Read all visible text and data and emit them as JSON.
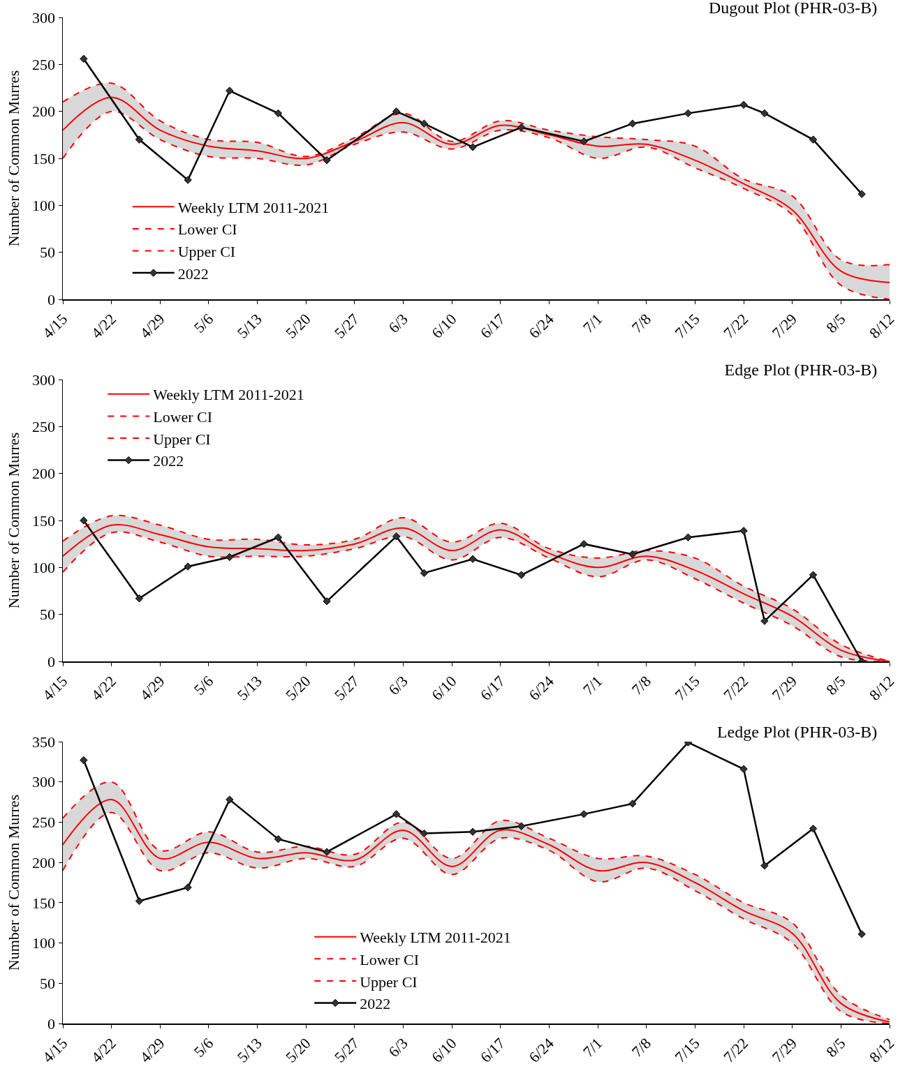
{
  "chart_data": [
    {
      "type": "line",
      "title": "Dugout Plot (PHR-03-B)",
      "ylabel": "Number of Common Murres",
      "legend": "left",
      "grid": false,
      "x": [
        "--04-15",
        "--04-22",
        "--04-29",
        "--05-06",
        "--05-13",
        "--05-20",
        "--05-27",
        "--06-03",
        "--06-10",
        "--06-17",
        "--06-24",
        "--07-01",
        "--07-08",
        "--07-15",
        "--07-22",
        "--07-29",
        "--08-05",
        "--08-12"
      ],
      "xlim": [
        "--04-15",
        "--08-12"
      ],
      "xticks": [
        {
          "value": "--04-15",
          "label": "4/15"
        },
        {
          "value": "--04-22",
          "label": "4/22"
        },
        {
          "value": "--04-29",
          "label": "4/29"
        },
        {
          "value": "--05-06",
          "label": "5/6"
        },
        {
          "value": "--05-13",
          "label": "5/13"
        },
        {
          "value": "--05-20",
          "label": "5/20"
        },
        {
          "value": "--05-27",
          "label": "5/27"
        },
        {
          "value": "--06-03",
          "label": "6/3"
        },
        {
          "value": "--06-10",
          "label": "6/10"
        },
        {
          "value": "--06-17",
          "label": "6/17"
        },
        {
          "value": "--06-24",
          "label": "6/24"
        },
        {
          "value": "--07-01",
          "label": "7/1"
        },
        {
          "value": "--07-08",
          "label": "7/8"
        },
        {
          "value": "--07-15",
          "label": "7/15"
        },
        {
          "value": "--07-22",
          "label": "7/22"
        },
        {
          "value": "--07-29",
          "label": "7/29"
        },
        {
          "value": "--08-05",
          "label": "8/5"
        },
        {
          "value": "--08-12",
          "label": "8/12"
        }
      ],
      "ylim": [
        0,
        300
      ],
      "yticks": [
        0,
        50,
        100,
        150,
        200,
        250,
        300
      ],
      "series": [
        {
          "name": "Weekly LTM 2011-2021",
          "color": "#ff0000",
          "line_style": "solid",
          "marker": "none",
          "values": [
            180,
            215,
            180,
            163,
            158,
            150,
            168,
            188,
            165,
            185,
            175,
            163,
            165,
            148,
            123,
            95,
            30,
            18
          ],
          "lower": [
            150,
            200,
            170,
            152,
            150,
            143,
            165,
            178,
            160,
            180,
            172,
            150,
            162,
            140,
            118,
            90,
            15,
            0
          ],
          "upper": [
            210,
            230,
            190,
            170,
            167,
            152,
            172,
            198,
            168,
            190,
            180,
            173,
            170,
            163,
            128,
            110,
            42,
            37
          ]
        },
        {
          "name": "Lower CI",
          "color": "#ff0000",
          "line_style": "dashed",
          "marker": "none",
          "values": [
            150,
            200,
            170,
            152,
            150,
            143,
            165,
            178,
            160,
            180,
            172,
            150,
            162,
            140,
            118,
            90,
            15,
            0
          ]
        },
        {
          "name": "Upper CI",
          "color": "#ff0000",
          "line_style": "dashed",
          "marker": "none",
          "values": [
            210,
            230,
            190,
            170,
            167,
            152,
            172,
            198,
            168,
            190,
            180,
            173,
            170,
            163,
            128,
            110,
            42,
            37
          ]
        },
        {
          "name": "2022",
          "color": "#000000",
          "line_style": "solid",
          "marker": "diamond",
          "x": [
            "--04-18",
            "--04-26",
            "--05-03",
            "--05-09",
            "--05-16",
            "--05-23",
            "--06-02",
            "--06-06",
            "--06-13",
            "--06-20",
            "--06-29",
            "--07-06",
            "--07-14",
            "--07-22",
            "--07-25",
            "--08-01",
            "--08-08"
          ],
          "values": [
            256,
            170,
            127,
            222,
            198,
            148,
            200,
            187,
            162,
            183,
            168,
            187,
            198,
            207,
            198,
            170,
            112
          ]
        }
      ]
    },
    {
      "type": "line",
      "title": "Edge Plot (PHR-03-B)",
      "ylabel": "Number of Common Murres",
      "legend": "top left",
      "grid": false,
      "x": [
        "--04-15",
        "--04-22",
        "--04-29",
        "--05-06",
        "--05-13",
        "--05-20",
        "--05-27",
        "--06-03",
        "--06-10",
        "--06-17",
        "--06-24",
        "--07-01",
        "--07-08",
        "--07-15",
        "--07-22",
        "--07-29",
        "--08-05",
        "--08-12"
      ],
      "xlim": [
        "--04-15",
        "--08-12"
      ],
      "xticks": [
        {
          "value": "--04-15",
          "label": "4/15"
        },
        {
          "value": "--04-22",
          "label": "4/22"
        },
        {
          "value": "--04-29",
          "label": "4/29"
        },
        {
          "value": "--05-06",
          "label": "5/6"
        },
        {
          "value": "--05-13",
          "label": "5/13"
        },
        {
          "value": "--05-20",
          "label": "5/20"
        },
        {
          "value": "--05-27",
          "label": "5/27"
        },
        {
          "value": "--06-03",
          "label": "6/3"
        },
        {
          "value": "--06-10",
          "label": "6/10"
        },
        {
          "value": "--06-17",
          "label": "6/17"
        },
        {
          "value": "--06-24",
          "label": "6/24"
        },
        {
          "value": "--07-01",
          "label": "7/1"
        },
        {
          "value": "--07-08",
          "label": "7/8"
        },
        {
          "value": "--07-15",
          "label": "7/15"
        },
        {
          "value": "--07-22",
          "label": "7/22"
        },
        {
          "value": "--07-29",
          "label": "7/29"
        },
        {
          "value": "--08-05",
          "label": "8/5"
        },
        {
          "value": "--08-12",
          "label": "8/12"
        }
      ],
      "ylim": [
        0,
        300
      ],
      "yticks": [
        0,
        50,
        100,
        150,
        200,
        250,
        300
      ],
      "series": [
        {
          "name": "Weekly LTM 2011-2021",
          "color": "#ff0000",
          "line_style": "solid",
          "marker": "none",
          "values": [
            112,
            145,
            135,
            122,
            120,
            118,
            125,
            142,
            118,
            140,
            115,
            100,
            112,
            97,
            72,
            48,
            12,
            0
          ],
          "lower": [
            95,
            137,
            127,
            112,
            112,
            112,
            120,
            133,
            108,
            132,
            110,
            90,
            108,
            88,
            62,
            38,
            5,
            0
          ],
          "upper": [
            128,
            155,
            145,
            130,
            130,
            124,
            130,
            153,
            127,
            147,
            120,
            110,
            118,
            110,
            80,
            56,
            18,
            0
          ]
        },
        {
          "name": "Lower CI",
          "color": "#ff0000",
          "line_style": "dashed",
          "marker": "none",
          "values": [
            95,
            137,
            127,
            112,
            112,
            112,
            120,
            133,
            108,
            132,
            110,
            90,
            108,
            88,
            62,
            38,
            5,
            0
          ]
        },
        {
          "name": "Upper CI",
          "color": "#ff0000",
          "line_style": "dashed",
          "marker": "none",
          "values": [
            128,
            155,
            145,
            130,
            130,
            124,
            130,
            153,
            127,
            147,
            120,
            110,
            118,
            110,
            80,
            56,
            18,
            0
          ]
        },
        {
          "name": "2022",
          "color": "#000000",
          "line_style": "solid",
          "marker": "diamond",
          "x": [
            "--04-18",
            "--04-26",
            "--05-03",
            "--05-09",
            "--05-16",
            "--05-23",
            "--06-02",
            "--06-06",
            "--06-13",
            "--06-20",
            "--06-29",
            "--07-06",
            "--07-14",
            "--07-22",
            "--07-25",
            "--08-01",
            "--08-08"
          ],
          "values": [
            150,
            67,
            101,
            111,
            132,
            64,
            133,
            94,
            109,
            92,
            125,
            114,
            132,
            139,
            43,
            92,
            0
          ]
        }
      ]
    },
    {
      "type": "line",
      "title": "Ledge Plot (PHR-03-B)",
      "ylabel": "Number of Common Murres",
      "legend": "bottom",
      "grid": false,
      "x": [
        "--04-15",
        "--04-22",
        "--04-29",
        "--05-06",
        "--05-13",
        "--05-20",
        "--05-27",
        "--06-03",
        "--06-10",
        "--06-17",
        "--06-24",
        "--07-01",
        "--07-08",
        "--07-15",
        "--07-22",
        "--07-29",
        "--08-05",
        "--08-12"
      ],
      "xlim": [
        "--04-15",
        "--08-12"
      ],
      "xticks": [
        {
          "value": "--04-15",
          "label": "4/15"
        },
        {
          "value": "--04-22",
          "label": "4/22"
        },
        {
          "value": "--04-29",
          "label": "4/29"
        },
        {
          "value": "--05-06",
          "label": "5/6"
        },
        {
          "value": "--05-13",
          "label": "5/13"
        },
        {
          "value": "--05-20",
          "label": "5/20"
        },
        {
          "value": "--05-27",
          "label": "5/27"
        },
        {
          "value": "--06-03",
          "label": "6/3"
        },
        {
          "value": "--06-10",
          "label": "6/10"
        },
        {
          "value": "--06-17",
          "label": "6/17"
        },
        {
          "value": "--06-24",
          "label": "6/24"
        },
        {
          "value": "--07-01",
          "label": "7/1"
        },
        {
          "value": "--07-08",
          "label": "7/8"
        },
        {
          "value": "--07-15",
          "label": "7/15"
        },
        {
          "value": "--07-22",
          "label": "7/22"
        },
        {
          "value": "--07-29",
          "label": "7/29"
        },
        {
          "value": "--08-05",
          "label": "8/5"
        },
        {
          "value": "--08-12",
          "label": "8/12"
        }
      ],
      "ylim": [
        0,
        350
      ],
      "yticks": [
        0,
        50,
        100,
        150,
        200,
        250,
        300,
        350
      ],
      "series": [
        {
          "name": "Weekly LTM 2011-2021",
          "color": "#ff0000",
          "line_style": "solid",
          "marker": "none",
          "values": [
            222,
            278,
            205,
            225,
            205,
            212,
            203,
            240,
            195,
            240,
            222,
            190,
            200,
            175,
            140,
            112,
            25,
            2
          ],
          "lower": [
            190,
            262,
            190,
            212,
            193,
            205,
            195,
            230,
            185,
            230,
            215,
            176,
            193,
            165,
            130,
            100,
            15,
            0
          ],
          "upper": [
            255,
            300,
            215,
            238,
            213,
            220,
            210,
            250,
            205,
            252,
            230,
            205,
            208,
            185,
            150,
            125,
            35,
            5
          ]
        },
        {
          "name": "Lower CI",
          "color": "#ff0000",
          "line_style": "dashed",
          "marker": "none",
          "values": [
            190,
            262,
            190,
            212,
            193,
            205,
            195,
            230,
            185,
            230,
            215,
            176,
            193,
            165,
            130,
            100,
            15,
            0
          ]
        },
        {
          "name": "Upper CI",
          "color": "#ff0000",
          "line_style": "dashed",
          "marker": "none",
          "values": [
            255,
            300,
            215,
            238,
            213,
            220,
            210,
            250,
            205,
            252,
            230,
            205,
            208,
            185,
            150,
            125,
            35,
            5
          ]
        },
        {
          "name": "2022",
          "color": "#000000",
          "line_style": "solid",
          "marker": "diamond",
          "x": [
            "--04-18",
            "--04-26",
            "--05-03",
            "--05-09",
            "--05-16",
            "--05-23",
            "--06-02",
            "--06-06",
            "--06-13",
            "--06-20",
            "--06-29",
            "--07-06",
            "--07-14",
            "--07-22",
            "--07-25",
            "--08-01",
            "--08-08"
          ],
          "values": [
            327,
            152,
            169,
            278,
            229,
            213,
            260,
            236,
            238,
            245,
            260,
            273,
            349,
            316,
            196,
            242,
            111
          ]
        }
      ]
    }
  ]
}
